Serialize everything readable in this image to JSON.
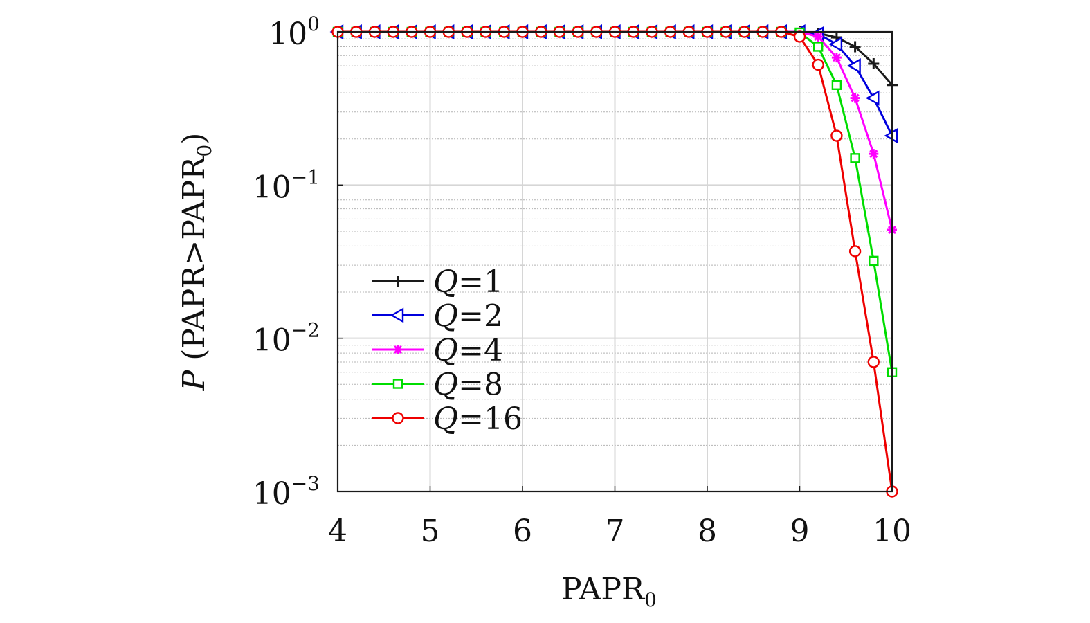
{
  "chart_data": {
    "type": "line",
    "xlabel": "PAPR",
    "xlabel_sub": "0",
    "ylabel": {
      "italic": "P",
      "text": " (PAPR>PAPR",
      "sub": "0",
      "close": ")"
    },
    "xlim": [
      4,
      10
    ],
    "ylim": [
      0.001,
      1
    ],
    "yscale": "log",
    "grid": true,
    "legend_position": "center-left",
    "xticks": [
      4,
      5,
      6,
      7,
      8,
      9,
      10
    ],
    "xtick_labels": [
      "4",
      "5",
      "6",
      "7",
      "8",
      "9",
      "10"
    ],
    "yticks": [
      {
        "value": 1,
        "base": "10",
        "exp": "0"
      },
      {
        "value": 0.1,
        "base": "10",
        "exp": "−1"
      },
      {
        "value": 0.01,
        "base": "10",
        "exp": "−2"
      },
      {
        "value": 0.001,
        "base": "10",
        "exp": "−3"
      }
    ],
    "x": [
      4.0,
      4.2,
      4.4,
      4.6,
      4.8,
      5.0,
      5.2,
      5.4,
      5.6,
      5.8,
      6.0,
      6.2,
      6.4,
      6.6,
      6.8,
      7.0,
      7.2,
      7.4,
      7.6,
      7.8,
      8.0,
      8.2,
      8.4,
      8.6,
      8.8,
      9.0,
      9.2,
      9.4,
      9.6,
      9.8,
      10.0
    ],
    "series": [
      {
        "name": "Q=1",
        "name_italic": "Q",
        "name_rest": "=1",
        "color": "#1a1a1a",
        "marker": "plus",
        "values": [
          1,
          1,
          1,
          1,
          1,
          1,
          1,
          1,
          1,
          1,
          1,
          1,
          1,
          1,
          1,
          1,
          1,
          1,
          1,
          1,
          1,
          1,
          1,
          1,
          1,
          1,
          0.98,
          0.92,
          0.8,
          0.62,
          0.45
        ]
      },
      {
        "name": "Q=2",
        "name_italic": "Q",
        "name_rest": "=2",
        "color": "#0000dd",
        "marker": "triangle-left",
        "values": [
          1,
          1,
          1,
          1,
          1,
          1,
          1,
          1,
          1,
          1,
          1,
          1,
          1,
          1,
          1,
          1,
          1,
          1,
          1,
          1,
          1,
          1,
          1,
          1,
          1,
          1,
          0.97,
          0.83,
          0.6,
          0.37,
          0.21
        ]
      },
      {
        "name": "Q=4",
        "name_italic": "Q",
        "name_rest": "=4",
        "color": "#ff00ff",
        "marker": "asterisk",
        "values": [
          1,
          1,
          1,
          1,
          1,
          1,
          1,
          1,
          1,
          1,
          1,
          1,
          1,
          1,
          1,
          1,
          1,
          1,
          1,
          1,
          1,
          1,
          1,
          1,
          1,
          1,
          0.93,
          0.68,
          0.37,
          0.16,
          0.051
        ]
      },
      {
        "name": "Q=8",
        "name_italic": "Q",
        "name_rest": "=8",
        "color": "#00dd00",
        "marker": "square",
        "values": [
          1,
          1,
          1,
          1,
          1,
          1,
          1,
          1,
          1,
          1,
          1,
          1,
          1,
          1,
          1,
          1,
          1,
          1,
          1,
          1,
          1,
          1,
          1,
          1,
          1,
          0.99,
          0.8,
          0.45,
          0.15,
          0.032,
          0.006
        ]
      },
      {
        "name": "Q=16",
        "name_italic": "Q",
        "name_rest": "=16",
        "color": "#ee0000",
        "marker": "circle",
        "values": [
          1,
          1,
          1,
          1,
          1,
          1,
          1,
          1,
          1,
          1,
          1,
          1,
          1,
          1,
          1,
          1,
          1,
          1,
          1,
          1,
          1,
          1,
          1,
          1,
          1,
          0.93,
          0.61,
          0.21,
          0.037,
          0.007,
          0.001
        ]
      }
    ]
  }
}
